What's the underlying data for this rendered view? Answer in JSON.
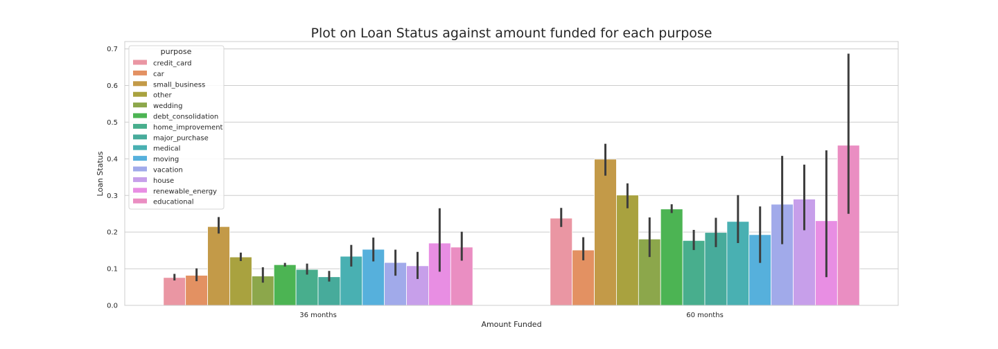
{
  "chart_data": {
    "type": "bar",
    "title": "Plot on Loan Status against amount funded for each purpose",
    "xlabel": "Amount Funded",
    "ylabel": "Loan Status",
    "categories": [
      "36 months",
      "60 months"
    ],
    "ylim": [
      0,
      0.72
    ],
    "yticks": [
      0.0,
      0.1,
      0.2,
      0.3,
      0.4,
      0.5,
      0.6,
      0.7
    ],
    "ytick_labels": [
      "0.0",
      "0.1",
      "0.2",
      "0.3",
      "0.4",
      "0.5",
      "0.6",
      "0.7"
    ],
    "grid": true,
    "legend": {
      "title": "purpose",
      "placement": "top-left"
    },
    "series": [
      {
        "name": "credit_card",
        "color": "#ea96a3",
        "values": [
          0.076,
          0.238
        ],
        "err_low": [
          0.068,
          0.214
        ],
        "err_high": [
          0.086,
          0.266
        ]
      },
      {
        "name": "car",
        "color": "#e39162",
        "values": [
          0.082,
          0.151
        ],
        "err_low": [
          0.066,
          0.123
        ],
        "err_high": [
          0.101,
          0.186
        ]
      },
      {
        "name": "small_business",
        "color": "#c39a48",
        "values": [
          0.215,
          0.399
        ],
        "err_low": [
          0.196,
          0.354
        ],
        "err_high": [
          0.241,
          0.441
        ]
      },
      {
        "name": "other",
        "color": "#a9a23f",
        "values": [
          0.132,
          0.301
        ],
        "err_low": [
          0.121,
          0.265
        ],
        "err_high": [
          0.144,
          0.333
        ]
      },
      {
        "name": "wedding",
        "color": "#8ca74b",
        "values": [
          0.08,
          0.181
        ],
        "err_low": [
          0.062,
          0.132
        ],
        "err_high": [
          0.104,
          0.24
        ]
      },
      {
        "name": "debt_consolidation",
        "color": "#4cb453",
        "values": [
          0.111,
          0.263
        ],
        "err_low": [
          0.106,
          0.252
        ],
        "err_high": [
          0.116,
          0.276
        ]
      },
      {
        "name": "home_improvement",
        "color": "#48ae8d",
        "values": [
          0.098,
          0.177
        ],
        "err_low": [
          0.084,
          0.151
        ],
        "err_high": [
          0.114,
          0.206
        ]
      },
      {
        "name": "major_purchase",
        "color": "#47ab9b",
        "values": [
          0.078,
          0.199
        ],
        "err_low": [
          0.065,
          0.159
        ],
        "err_high": [
          0.094,
          0.239
        ]
      },
      {
        "name": "medical",
        "color": "#49b0b2",
        "values": [
          0.134,
          0.229
        ],
        "err_low": [
          0.106,
          0.17
        ],
        "err_high": [
          0.165,
          0.301
        ]
      },
      {
        "name": "moving",
        "color": "#56b0dc",
        "values": [
          0.153,
          0.193
        ],
        "err_low": [
          0.12,
          0.116
        ],
        "err_high": [
          0.185,
          0.27
        ]
      },
      {
        "name": "vacation",
        "color": "#a1aaea",
        "values": [
          0.117,
          0.276
        ],
        "err_low": [
          0.081,
          0.167
        ],
        "err_high": [
          0.152,
          0.408
        ]
      },
      {
        "name": "house",
        "color": "#c79fea",
        "values": [
          0.108,
          0.29
        ],
        "err_low": [
          0.072,
          0.205
        ],
        "err_high": [
          0.146,
          0.384
        ]
      },
      {
        "name": "renewable_energy",
        "color": "#e88ee3",
        "values": [
          0.17,
          0.231
        ],
        "err_low": [
          0.092,
          0.077
        ],
        "err_high": [
          0.265,
          0.423
        ]
      },
      {
        "name": "educational",
        "color": "#ea8ec2",
        "values": [
          0.159,
          0.437
        ],
        "err_low": [
          0.122,
          0.25
        ],
        "err_high": [
          0.201,
          0.687
        ]
      }
    ]
  }
}
